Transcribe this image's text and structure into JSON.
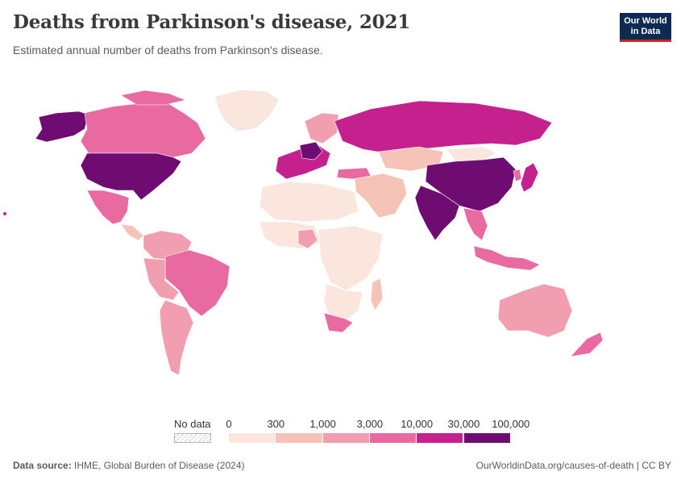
{
  "header": {
    "title": "Deaths from Parkinson's disease, 2021",
    "subtitle": "Estimated annual number of deaths from Parkinson's disease."
  },
  "logo": {
    "line1": "Our World",
    "line2": "in Data"
  },
  "legend": {
    "no_data_label": "No data",
    "ticks": [
      "0",
      "300",
      "1,000",
      "3,000",
      "10,000",
      "30,000",
      "100,000"
    ],
    "colors": [
      "#fbe6de",
      "#f6c3b8",
      "#f19eb0",
      "#e86aa0",
      "#c4218e",
      "#6e0c72"
    ]
  },
  "footer": {
    "source_label": "Data source:",
    "source_text": "IHME, Global Burden of Disease (2024)",
    "url": "OurWorldinData.org/causes-of-death | CC BY"
  },
  "regions": [
    {
      "name": "United States",
      "bin": 5
    },
    {
      "name": "Canada",
      "bin": 3
    },
    {
      "name": "Alaska",
      "bin": 5
    },
    {
      "name": "Greenland",
      "bin": 0
    },
    {
      "name": "Mexico",
      "bin": 3
    },
    {
      "name": "Brazil",
      "bin": 3
    },
    {
      "name": "Argentina",
      "bin": 2
    },
    {
      "name": "Russia",
      "bin": 4
    },
    {
      "name": "China",
      "bin": 5
    },
    {
      "name": "India",
      "bin": 5
    },
    {
      "name": "Japan",
      "bin": 4
    },
    {
      "name": "Australia",
      "bin": 2
    },
    {
      "name": "Nigeria",
      "bin": 2
    },
    {
      "name": "South Africa",
      "bin": 3
    },
    {
      "name": "Germany",
      "bin": 5
    },
    {
      "name": "Kazakhstan",
      "bin": 1
    },
    {
      "name": "Indonesia",
      "bin": 3
    }
  ]
}
